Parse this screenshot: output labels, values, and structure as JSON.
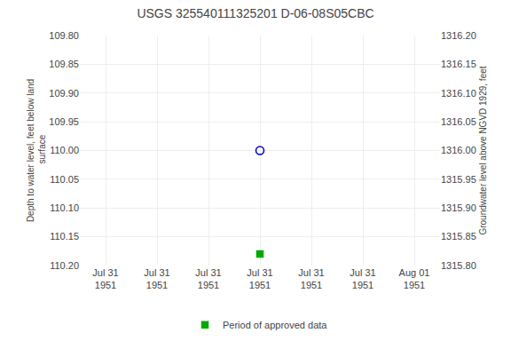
{
  "chart_data": {
    "type": "scatter",
    "title": "USGS 325540111325201 D-06-08S05CBC",
    "ylabel": "Depth to water level, feet below land\n surface",
    "y2label": "Groundwater level above NGVD 1929, feet",
    "categories": [
      "Jul 31\n1951",
      "Jul 31\n1951",
      "Jul 31\n1951",
      "Jul 31\n1951",
      "Jul 31\n1951",
      "Jul 31\n1951",
      "Aug 01\n1951"
    ],
    "series": [
      {
        "color": "#0000bb",
        "marker": "circle-open",
        "values": [
          null,
          null,
          null,
          110.0,
          null,
          null,
          null
        ]
      },
      {
        "name": "Period of approved data",
        "color": "#00aa00",
        "marker": "square",
        "values": [
          null,
          null,
          null,
          110.18,
          null,
          null,
          null
        ]
      }
    ],
    "ylim": [
      110.2,
      109.8
    ],
    "yticks": [
      {
        "value": 109.8,
        "label": "109.80"
      },
      109.85,
      {
        "value": 109.9,
        "label": "109.90"
      },
      109.95,
      {
        "value": 110.0,
        "label": "110.00"
      },
      110.05,
      {
        "value": 110.1,
        "label": "110.10"
      },
      110.15,
      {
        "value": 110.2,
        "label": "110.20"
      }
    ],
    "y2lim": [
      1315.8,
      1316.2
    ],
    "y2ticks": [
      {
        "value": 1315.8,
        "label": "1315.80"
      },
      1315.85,
      {
        "value": 1315.9,
        "label": "1315.90"
      },
      1315.95,
      {
        "value": 1316.0,
        "label": "1316.00"
      },
      1316.05,
      {
        "value": 1316.1,
        "label": "1316.10"
      },
      1316.15,
      {
        "value": 1316.2,
        "label": "1316.20"
      }
    ],
    "grid": true,
    "legend": "bottom"
  }
}
